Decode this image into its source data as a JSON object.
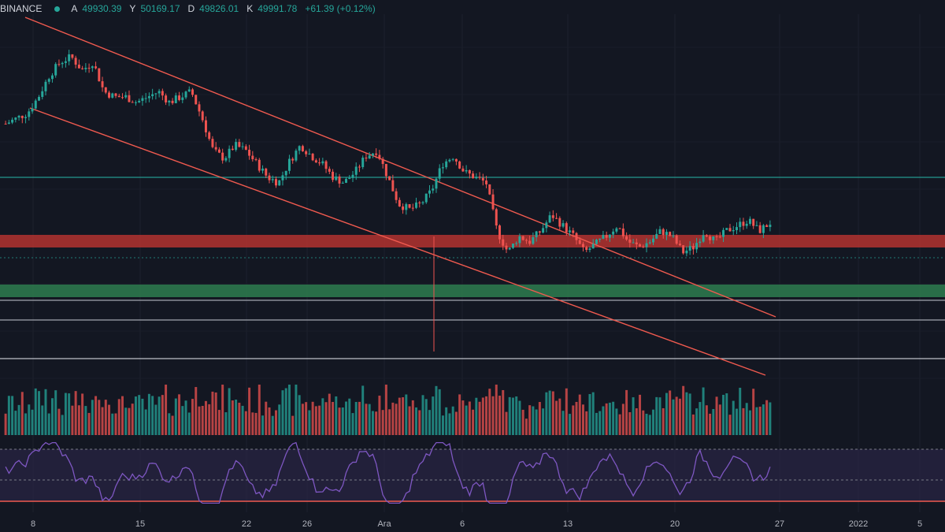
{
  "header": {
    "exchange": "BINANCE",
    "open_label": "A",
    "open_value": "49930.39",
    "high_label": "Y",
    "high_value": "50169.17",
    "low_label": "D",
    "low_value": "49826.01",
    "close_label": "K",
    "close_value": "49991.78",
    "change": "+61.39 (+0.12%)"
  },
  "colors": {
    "background": "#131722",
    "up": "#26a69a",
    "down": "#ef5350",
    "trendline": "#f05a4f",
    "resistance_zone": "#b3332f",
    "support_zone": "#2e7d4f",
    "rsi_line": "#7e57c2",
    "rsi_band": "#2a2545"
  },
  "chart_data": {
    "type": "candlestick",
    "x_ticks": [
      "8",
      "15",
      "22",
      "26",
      "Ara",
      "6",
      "13",
      "20",
      "27",
      "2022",
      "5"
    ],
    "price_series_shape": [
      0.7,
      0.72,
      0.74,
      0.8,
      0.88,
      0.93,
      0.95,
      0.9,
      0.93,
      0.82,
      0.8,
      0.8,
      0.78,
      0.8,
      0.82,
      0.78,
      0.8,
      0.82,
      0.72,
      0.6,
      0.57,
      0.62,
      0.6,
      0.55,
      0.5,
      0.48,
      0.56,
      0.62,
      0.58,
      0.55,
      0.5,
      0.48,
      0.52,
      0.58,
      0.6,
      0.5,
      0.4,
      0.38,
      0.4,
      0.45,
      0.55,
      0.58,
      0.52,
      0.5,
      0.48,
      0.3,
      0.22,
      0.28,
      0.26,
      0.3,
      0.36,
      0.32,
      0.28,
      0.22,
      0.25,
      0.28,
      0.32,
      0.26,
      0.24,
      0.26,
      0.3,
      0.28,
      0.22,
      0.24,
      0.3,
      0.26,
      0.3,
      0.32,
      0.34,
      0.3,
      0.33
    ],
    "horizontal_levels": [
      {
        "kind": "line",
        "color": "#26a69a"
      },
      {
        "kind": "zone",
        "color": "#b3332f"
      },
      {
        "kind": "zone",
        "color": "#2e7d4f"
      },
      {
        "kind": "line",
        "color": "#b2b5be"
      },
      {
        "kind": "line",
        "color": "#b2b5be"
      },
      {
        "kind": "line",
        "color": "#d1d4dc"
      }
    ],
    "trendlines": 3,
    "panes": [
      "price",
      "volume",
      "rsi"
    ]
  }
}
